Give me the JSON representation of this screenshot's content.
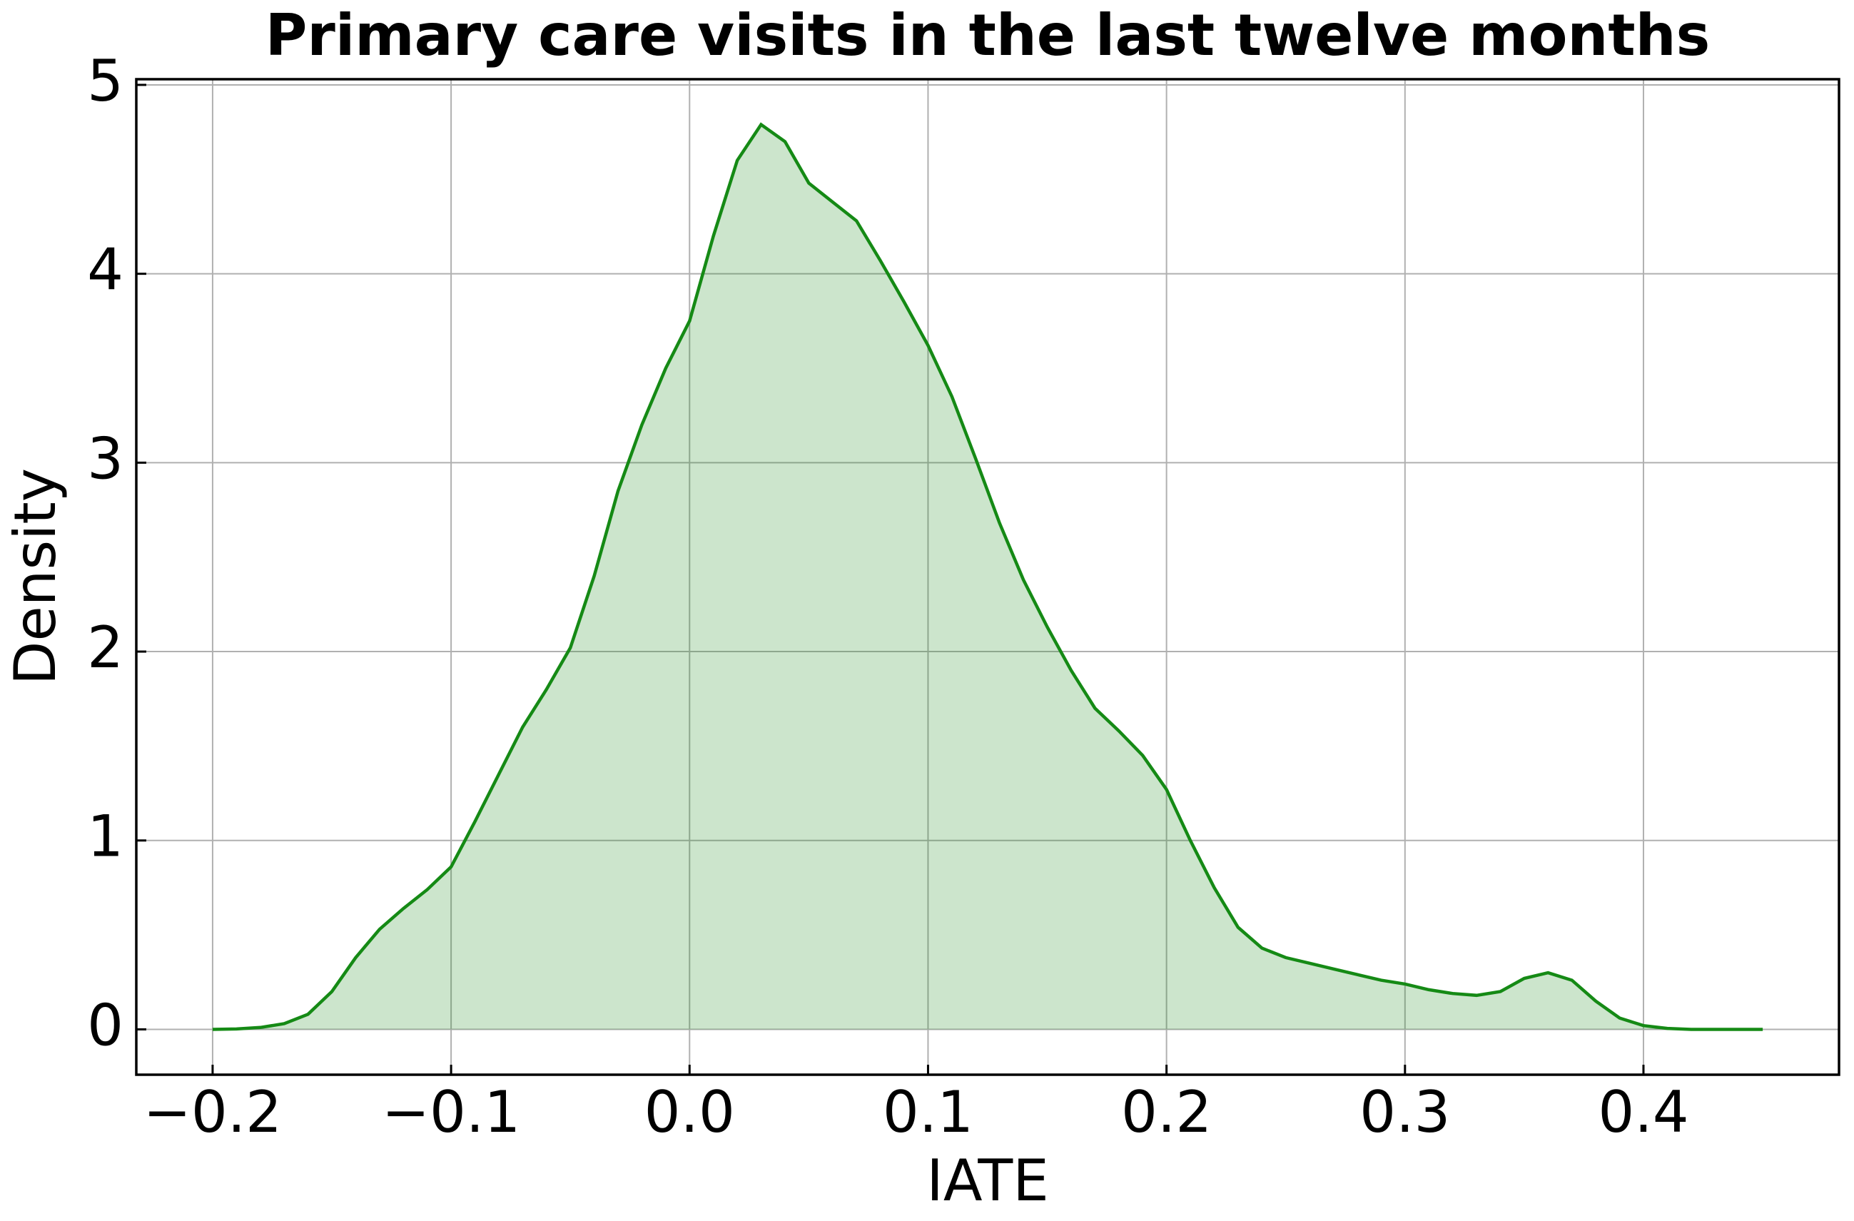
{
  "chart_data": {
    "type": "area",
    "title": "Primary care visits in the last twelve months",
    "xlabel": "IATE",
    "ylabel": "Density",
    "x": [
      -0.2,
      -0.19,
      -0.18,
      -0.17,
      -0.16,
      -0.15,
      -0.14,
      -0.13,
      -0.12,
      -0.11,
      -0.1,
      -0.09,
      -0.08,
      -0.07,
      -0.06,
      -0.05,
      -0.04,
      -0.03,
      -0.02,
      -0.01,
      0.0,
      0.01,
      0.02,
      0.03,
      0.04,
      0.05,
      0.06,
      0.07,
      0.08,
      0.09,
      0.1,
      0.11,
      0.12,
      0.13,
      0.14,
      0.15,
      0.16,
      0.17,
      0.18,
      0.19,
      0.2,
      0.21,
      0.22,
      0.23,
      0.24,
      0.25,
      0.26,
      0.27,
      0.28,
      0.29,
      0.3,
      0.31,
      0.32,
      0.33,
      0.34,
      0.35,
      0.36,
      0.37,
      0.38,
      0.39,
      0.4,
      0.41,
      0.42,
      0.43,
      0.44,
      0.45
    ],
    "values": [
      0,
      0.002,
      0.01,
      0.03,
      0.08,
      0.2,
      0.38,
      0.53,
      0.64,
      0.74,
      0.86,
      1.1,
      1.35,
      1.6,
      1.8,
      2.02,
      2.4,
      2.85,
      3.2,
      3.5,
      3.75,
      4.2,
      4.6,
      4.79,
      4.7,
      4.48,
      4.38,
      4.28,
      4.07,
      3.85,
      3.62,
      3.35,
      3.02,
      2.68,
      2.38,
      2.13,
      1.9,
      1.7,
      1.58,
      1.45,
      1.27,
      1.0,
      0.75,
      0.54,
      0.43,
      0.38,
      0.35,
      0.32,
      0.29,
      0.26,
      0.24,
      0.21,
      0.19,
      0.18,
      0.2,
      0.27,
      0.3,
      0.26,
      0.15,
      0.06,
      0.02,
      0.005,
      0,
      0,
      0,
      0
    ],
    "color": "#158a15",
    "xlim": [
      -0.232,
      0.482
    ],
    "ylim": [
      -0.24,
      5.03
    ],
    "xticks": [
      {
        "value": -0.2,
        "label": "−0.2"
      },
      {
        "value": -0.1,
        "label": "−0.1"
      },
      {
        "value": 0.0,
        "label": "0.0"
      },
      0.1,
      0.2,
      0.3,
      0.4
    ],
    "yticks": [
      0,
      1,
      2,
      3,
      4,
      5
    ],
    "grid": true
  }
}
